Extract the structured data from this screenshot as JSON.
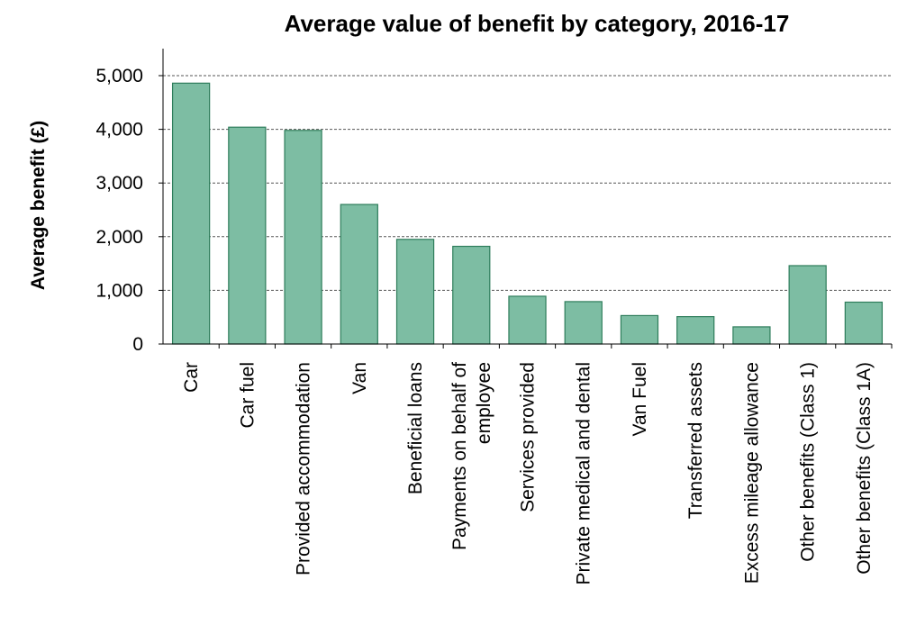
{
  "chart_data": {
    "type": "bar",
    "title": "Average value of benefit by category, 2016-17",
    "xlabel": "",
    "ylabel": "Average benefit (£)",
    "ylim": [
      0,
      5000
    ],
    "yticks": [
      0,
      1000,
      2000,
      3000,
      4000,
      5000
    ],
    "ytick_labels": [
      "0",
      "1,000",
      "2,000",
      "3,000",
      "4,000",
      "5,000"
    ],
    "grid": true,
    "legend": "none",
    "bar_color": "#7dbda3",
    "bar_edge_color": "#2e7d5b",
    "categories": [
      "Car",
      "Car fuel",
      "Provided accommodation",
      "Van",
      "Beneficial loans",
      "Payments on behalf of employee",
      "Services provided",
      "Private medical and dental",
      "Van Fuel",
      "Transferred assets",
      "Excess mileage allowance",
      "Other benefits (Class 1)",
      "Other benefits (Class 1A)"
    ],
    "category_lines": [
      [
        "Car"
      ],
      [
        "Car fuel"
      ],
      [
        "Provided accommodation"
      ],
      [
        "Van"
      ],
      [
        "Beneficial loans"
      ],
      [
        "Payments on behalf of",
        "employee"
      ],
      [
        "Services provided"
      ],
      [
        "Private medical and dental"
      ],
      [
        "Van Fuel"
      ],
      [
        "Transferred assets"
      ],
      [
        "Excess mileage allowance"
      ],
      [
        "Other benefits (Class 1)"
      ],
      [
        "Other benefits (Class 1A)"
      ]
    ],
    "values": [
      4860,
      4040,
      3980,
      2600,
      1950,
      1820,
      890,
      790,
      530,
      510,
      320,
      1460,
      780
    ]
  }
}
